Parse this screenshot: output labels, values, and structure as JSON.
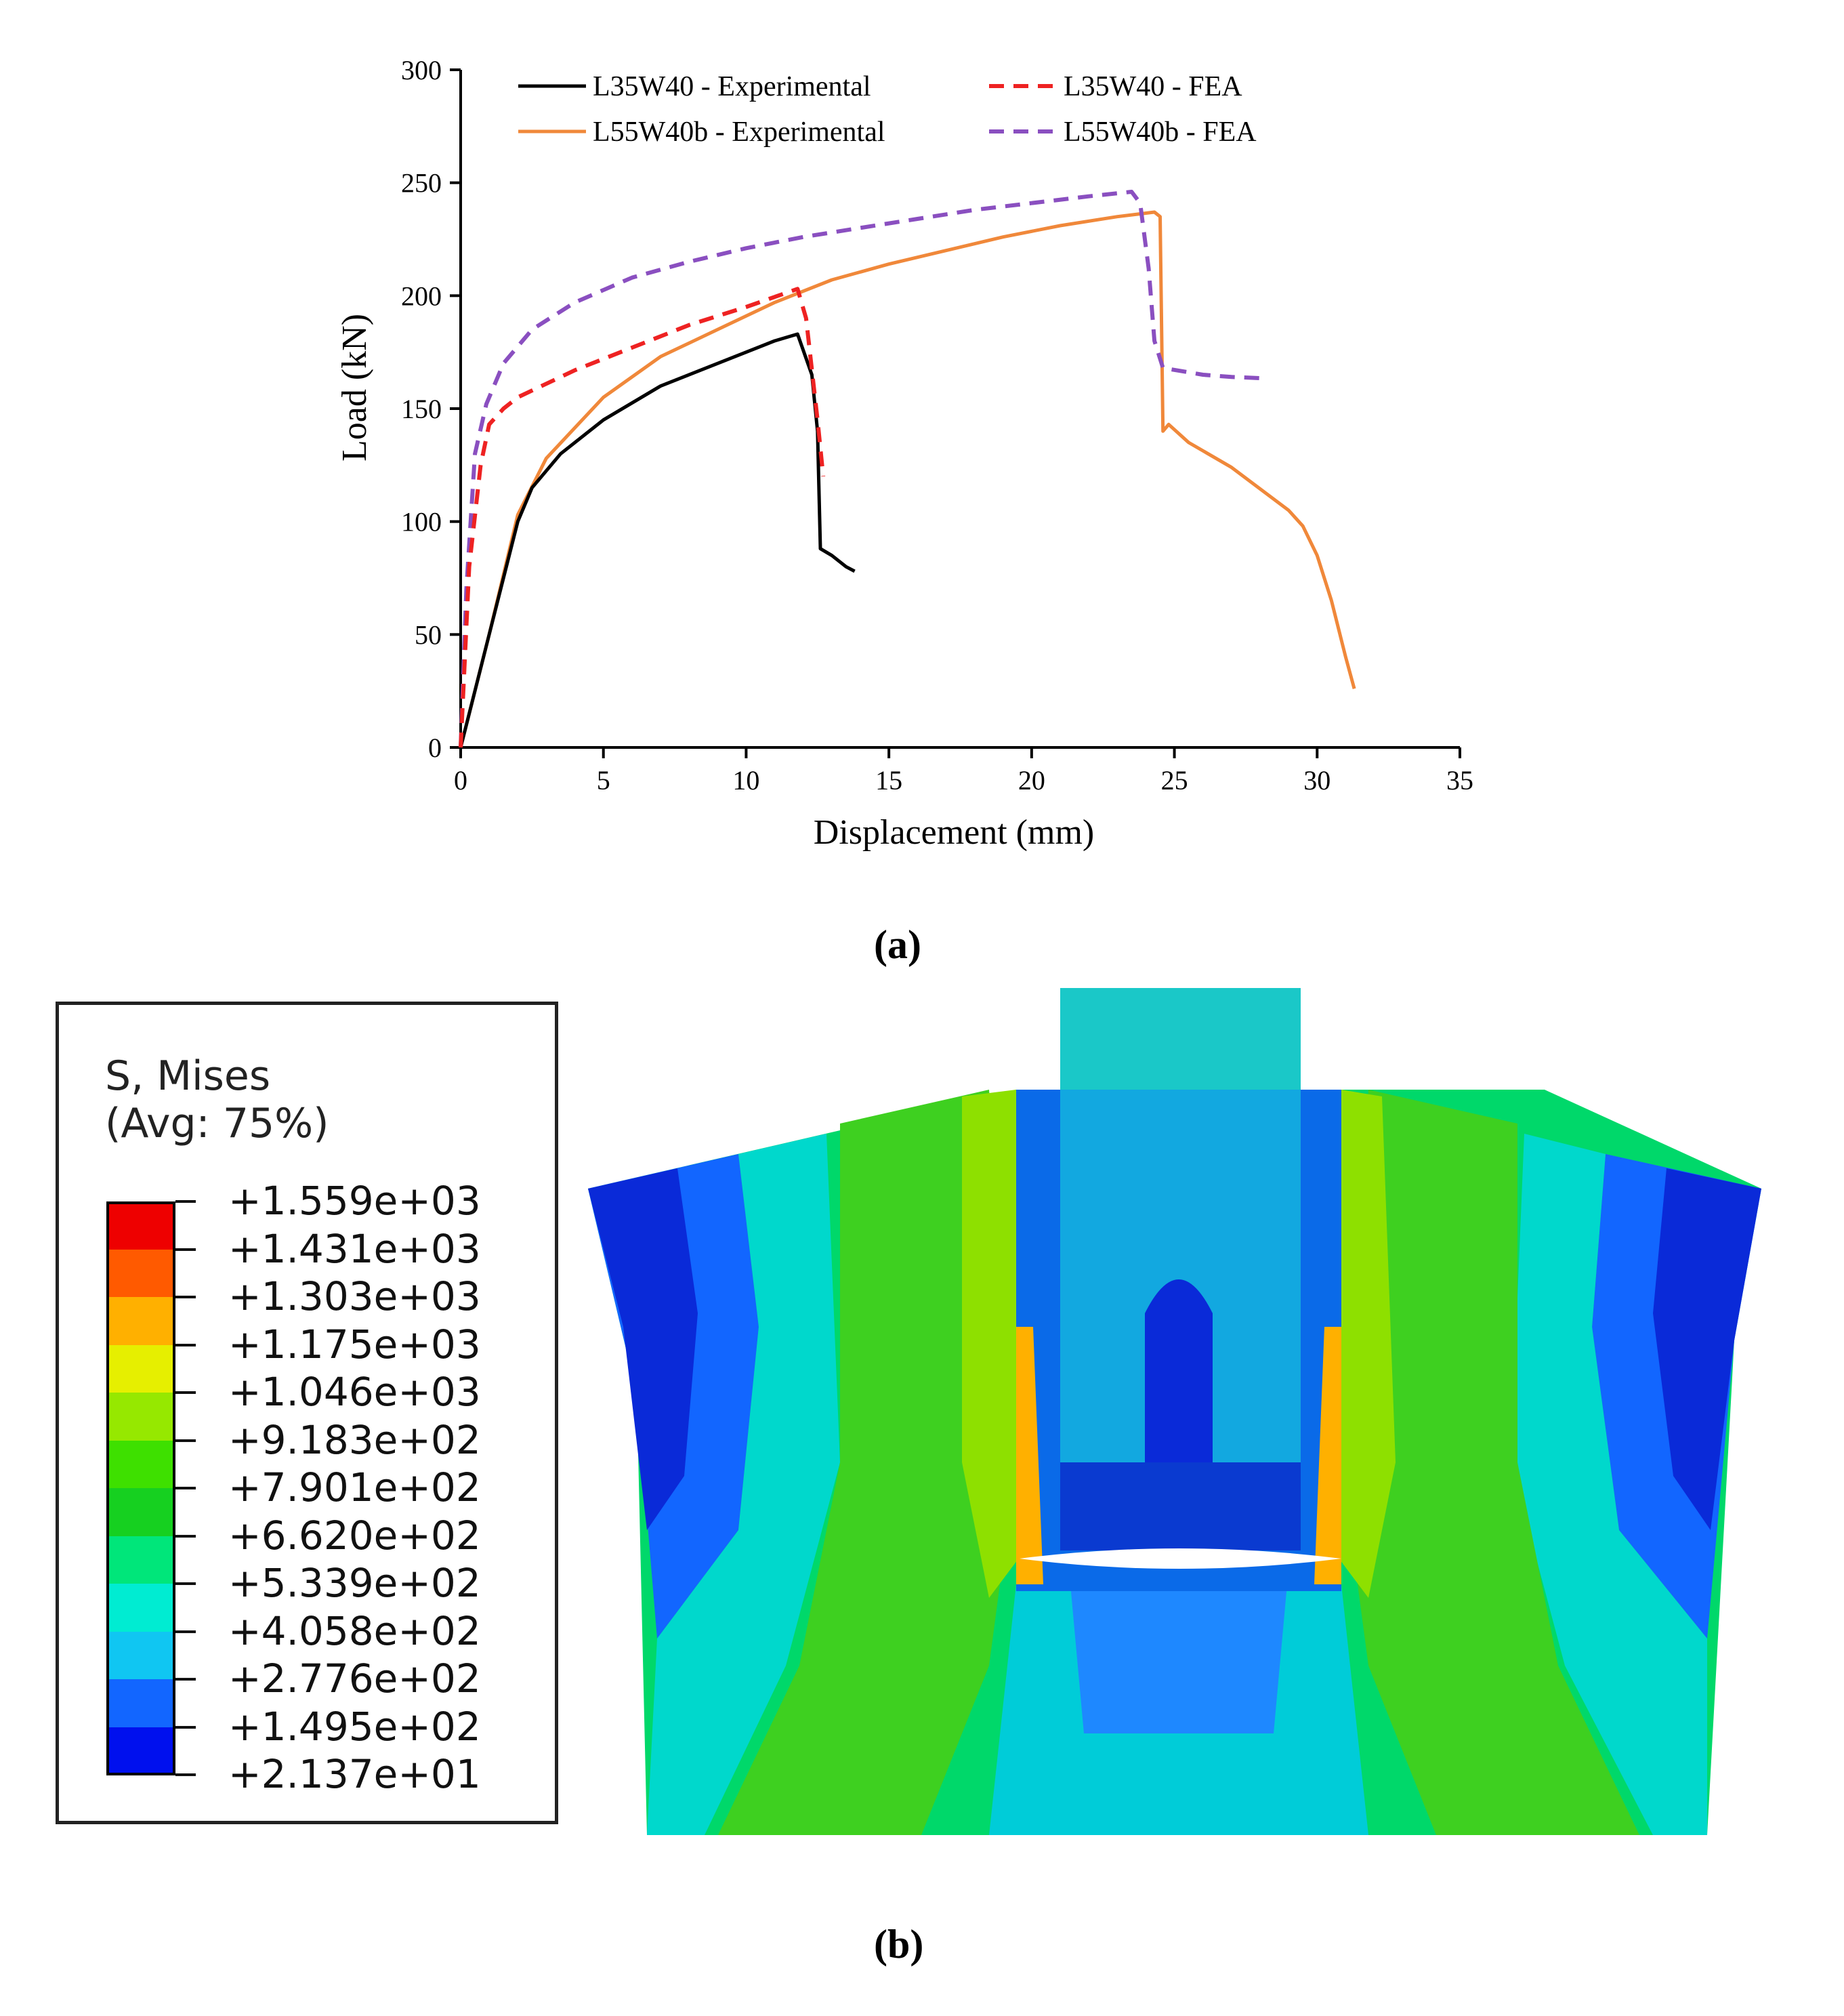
{
  "panel_a_label": "(a)",
  "panel_b_label": "(b)",
  "chart_data": {
    "type": "line",
    "title": "",
    "xlabel": "Displacement (mm)",
    "ylabel": "Load (kN)",
    "xlim": [
      0,
      35
    ],
    "ylim": [
      0,
      300
    ],
    "xticks": [
      0,
      5,
      10,
      15,
      20,
      25,
      30,
      35
    ],
    "yticks": [
      0,
      50,
      100,
      150,
      200,
      250,
      300
    ],
    "legend_position": "top",
    "series": [
      {
        "name": "L35W40 - Experimental",
        "color": "#000000",
        "dash": "solid",
        "points": [
          [
            0,
            0
          ],
          [
            1,
            50
          ],
          [
            2,
            100
          ],
          [
            2.5,
            115
          ],
          [
            3.5,
            130
          ],
          [
            5,
            145
          ],
          [
            7,
            160
          ],
          [
            9,
            170
          ],
          [
            11,
            180
          ],
          [
            11.8,
            183
          ],
          [
            12.3,
            165
          ],
          [
            12.5,
            140
          ],
          [
            12.6,
            88
          ],
          [
            13,
            85
          ],
          [
            13.5,
            80
          ],
          [
            13.8,
            78
          ]
        ]
      },
      {
        "name": "L35W40 - FEA",
        "color": "#ee2222",
        "dash": "dashed",
        "points": [
          [
            0,
            0
          ],
          [
            0.3,
            80
          ],
          [
            0.7,
            125
          ],
          [
            1,
            143
          ],
          [
            1.5,
            150
          ],
          [
            2,
            155
          ],
          [
            4,
            167
          ],
          [
            6,
            177
          ],
          [
            8,
            187
          ],
          [
            10,
            195
          ],
          [
            11.8,
            203
          ],
          [
            12.1,
            190
          ],
          [
            12.5,
            145
          ],
          [
            12.7,
            120
          ]
        ]
      },
      {
        "name": "L55W40b - Experimental",
        "color": "#f0883a",
        "dash": "solid",
        "points": [
          [
            0,
            0
          ],
          [
            1,
            50
          ],
          [
            2,
            103
          ],
          [
            3,
            128
          ],
          [
            5,
            155
          ],
          [
            7,
            173
          ],
          [
            9,
            185
          ],
          [
            11,
            197
          ],
          [
            13,
            207
          ],
          [
            15,
            214
          ],
          [
            17,
            220
          ],
          [
            19,
            226
          ],
          [
            21,
            231
          ],
          [
            23,
            235
          ],
          [
            24.3,
            237
          ],
          [
            24.5,
            235
          ],
          [
            24.6,
            140
          ],
          [
            24.8,
            143
          ],
          [
            25.5,
            135
          ],
          [
            27,
            124
          ],
          [
            29,
            105
          ],
          [
            29.5,
            98
          ],
          [
            30,
            85
          ],
          [
            30.5,
            65
          ],
          [
            31,
            40
          ],
          [
            31.3,
            26
          ]
        ]
      },
      {
        "name": "L55W40b - FEA",
        "color": "#8a4fc0",
        "dash": "dashed",
        "points": [
          [
            0,
            0
          ],
          [
            0.2,
            70
          ],
          [
            0.5,
            130
          ],
          [
            0.9,
            152
          ],
          [
            1.5,
            170
          ],
          [
            2.5,
            185
          ],
          [
            4,
            197
          ],
          [
            6,
            208
          ],
          [
            8,
            215
          ],
          [
            10,
            221
          ],
          [
            12,
            226
          ],
          [
            14,
            230
          ],
          [
            16,
            234
          ],
          [
            18,
            238
          ],
          [
            20,
            241
          ],
          [
            22,
            244
          ],
          [
            23.5,
            246
          ],
          [
            23.8,
            241
          ],
          [
            24.1,
            212
          ],
          [
            24.3,
            180
          ],
          [
            24.6,
            168
          ],
          [
            26,
            165
          ],
          [
            27,
            164
          ],
          [
            28,
            163.5
          ]
        ]
      }
    ]
  },
  "stress_legend": {
    "title": "S, Mises",
    "subtitle": "(Avg: 75%)",
    "values": [
      "+1.559e+03",
      "+1.431e+03",
      "+1.303e+03",
      "+1.175e+03",
      "+1.046e+03",
      "+9.183e+02",
      "+7.901e+02",
      "+6.620e+02",
      "+5.339e+02",
      "+4.058e+02",
      "+2.776e+02",
      "+1.495e+02",
      "+2.137e+01"
    ],
    "colors": [
      "#ee0000",
      "#ff5a00",
      "#ffb000",
      "#e6ef00",
      "#96e800",
      "#3ee000",
      "#16d020",
      "#00e67a",
      "#00ecd2",
      "#10c6f2",
      "#1266ff",
      "#0010ee"
    ]
  }
}
